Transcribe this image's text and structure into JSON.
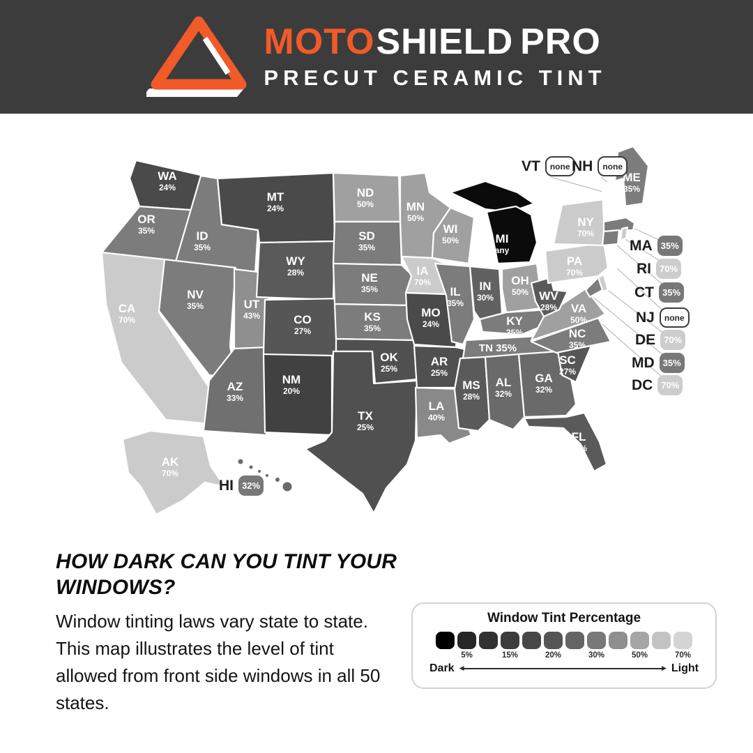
{
  "header": {
    "brand_moto": "MOTO",
    "brand_shield": "SHIELD",
    "brand_pro": "PRO",
    "tagline": "PRECUT CERAMIC TINT",
    "bg_color": "#3d3c3c",
    "accent_color": "#f15a29"
  },
  "map": {
    "palette": {
      "any": "#0b0b0b",
      "none": "#ffffff",
      "20%": "#414141",
      "24%": "#4a4a4a",
      "25%": "#505050",
      "27%": "#565656",
      "28%": "#5a5a5a",
      "30%": "#616161",
      "32%": "#6a6a6a",
      "33%": "#707070",
      "35%": "#7c7c7c",
      "40%": "#898989",
      "43%": "#8f8f8f",
      "50%": "#a0a0a0",
      "70%": "#cbcbcb"
    },
    "states": {
      "WA": {
        "value": "24%"
      },
      "OR": {
        "value": "35%"
      },
      "CA": {
        "value": "70%"
      },
      "ID": {
        "value": "35%"
      },
      "NV": {
        "value": "35%"
      },
      "UT": {
        "value": "43%"
      },
      "AZ": {
        "value": "33%"
      },
      "MT": {
        "value": "24%"
      },
      "WY": {
        "value": "28%"
      },
      "CO": {
        "value": "27%"
      },
      "NM": {
        "value": "20%"
      },
      "ND": {
        "value": "50%"
      },
      "SD": {
        "value": "35%"
      },
      "NE": {
        "value": "35%"
      },
      "KS": {
        "value": "35%"
      },
      "OK": {
        "value": "25%"
      },
      "TX": {
        "value": "25%"
      },
      "MN": {
        "value": "50%"
      },
      "IA": {
        "value": "70%"
      },
      "MO": {
        "value": "24%"
      },
      "AR": {
        "value": "25%"
      },
      "LA": {
        "value": "40%"
      },
      "WI": {
        "value": "50%"
      },
      "IL": {
        "value": "35%"
      },
      "IN": {
        "value": "30%"
      },
      "MI": {
        "value": "any"
      },
      "OH": {
        "value": "50%"
      },
      "KY": {
        "value": "35%"
      },
      "TN": {
        "value": "35%"
      },
      "MS": {
        "value": "28%"
      },
      "AL": {
        "value": "32%"
      },
      "GA": {
        "value": "32%"
      },
      "FL": {
        "value": "28%"
      },
      "SC": {
        "value": "27%"
      },
      "NC": {
        "value": "35%"
      },
      "VA": {
        "value": "50%"
      },
      "WV": {
        "value": "28%"
      },
      "PA": {
        "value": "70%"
      },
      "NY": {
        "value": "70%"
      },
      "ME": {
        "value": "35%"
      },
      "AK": {
        "value": "70%"
      },
      "HI": {
        "value": "32%"
      },
      "VT": {
        "value": "none"
      },
      "NH": {
        "value": "none"
      },
      "MA": {
        "value": "35%"
      },
      "RI": {
        "value": "70%"
      },
      "CT": {
        "value": "35%"
      },
      "NJ": {
        "value": "none"
      },
      "DE": {
        "value": "70%"
      },
      "MD": {
        "value": "35%"
      },
      "DC": {
        "value": "70%"
      }
    },
    "callouts": [
      {
        "abbr": "VT",
        "value": "none",
        "variant": "none"
      },
      {
        "abbr": "NH",
        "value": "none",
        "variant": "none"
      },
      {
        "abbr": "MA",
        "value": "35%",
        "variant": "dark"
      },
      {
        "abbr": "RI",
        "value": "70%",
        "variant": "light"
      },
      {
        "abbr": "CT",
        "value": "35%",
        "variant": "dark"
      },
      {
        "abbr": "NJ",
        "value": "none",
        "variant": "none"
      },
      {
        "abbr": "DE",
        "value": "70%",
        "variant": "light"
      },
      {
        "abbr": "MD",
        "value": "35%",
        "variant": "dark"
      },
      {
        "abbr": "DC",
        "value": "70%",
        "variant": "light"
      },
      {
        "abbr": "HI",
        "value": "32%",
        "variant": "dark"
      }
    ]
  },
  "content": {
    "heading": "HOW DARK CAN YOU TINT YOUR\nWINDOWS?",
    "paragraph": "Window tinting laws vary state to state. This map illustrates the level of tint allowed from front side windows in all 50 states."
  },
  "legend": {
    "title": "Window Tint Percentage",
    "swatches": [
      "#000000",
      "#262626",
      "#323232",
      "#3c3c3c",
      "#474747",
      "#555555",
      "#646464",
      "#787878",
      "#8f8f8f",
      "#a5a5a5",
      "#c3c3c3",
      "#d4d4d4"
    ],
    "tick_labels": [
      "5%",
      "15%",
      "20%",
      "30%",
      "50%",
      "70%"
    ],
    "dark_label": "Dark",
    "light_label": "Light"
  }
}
